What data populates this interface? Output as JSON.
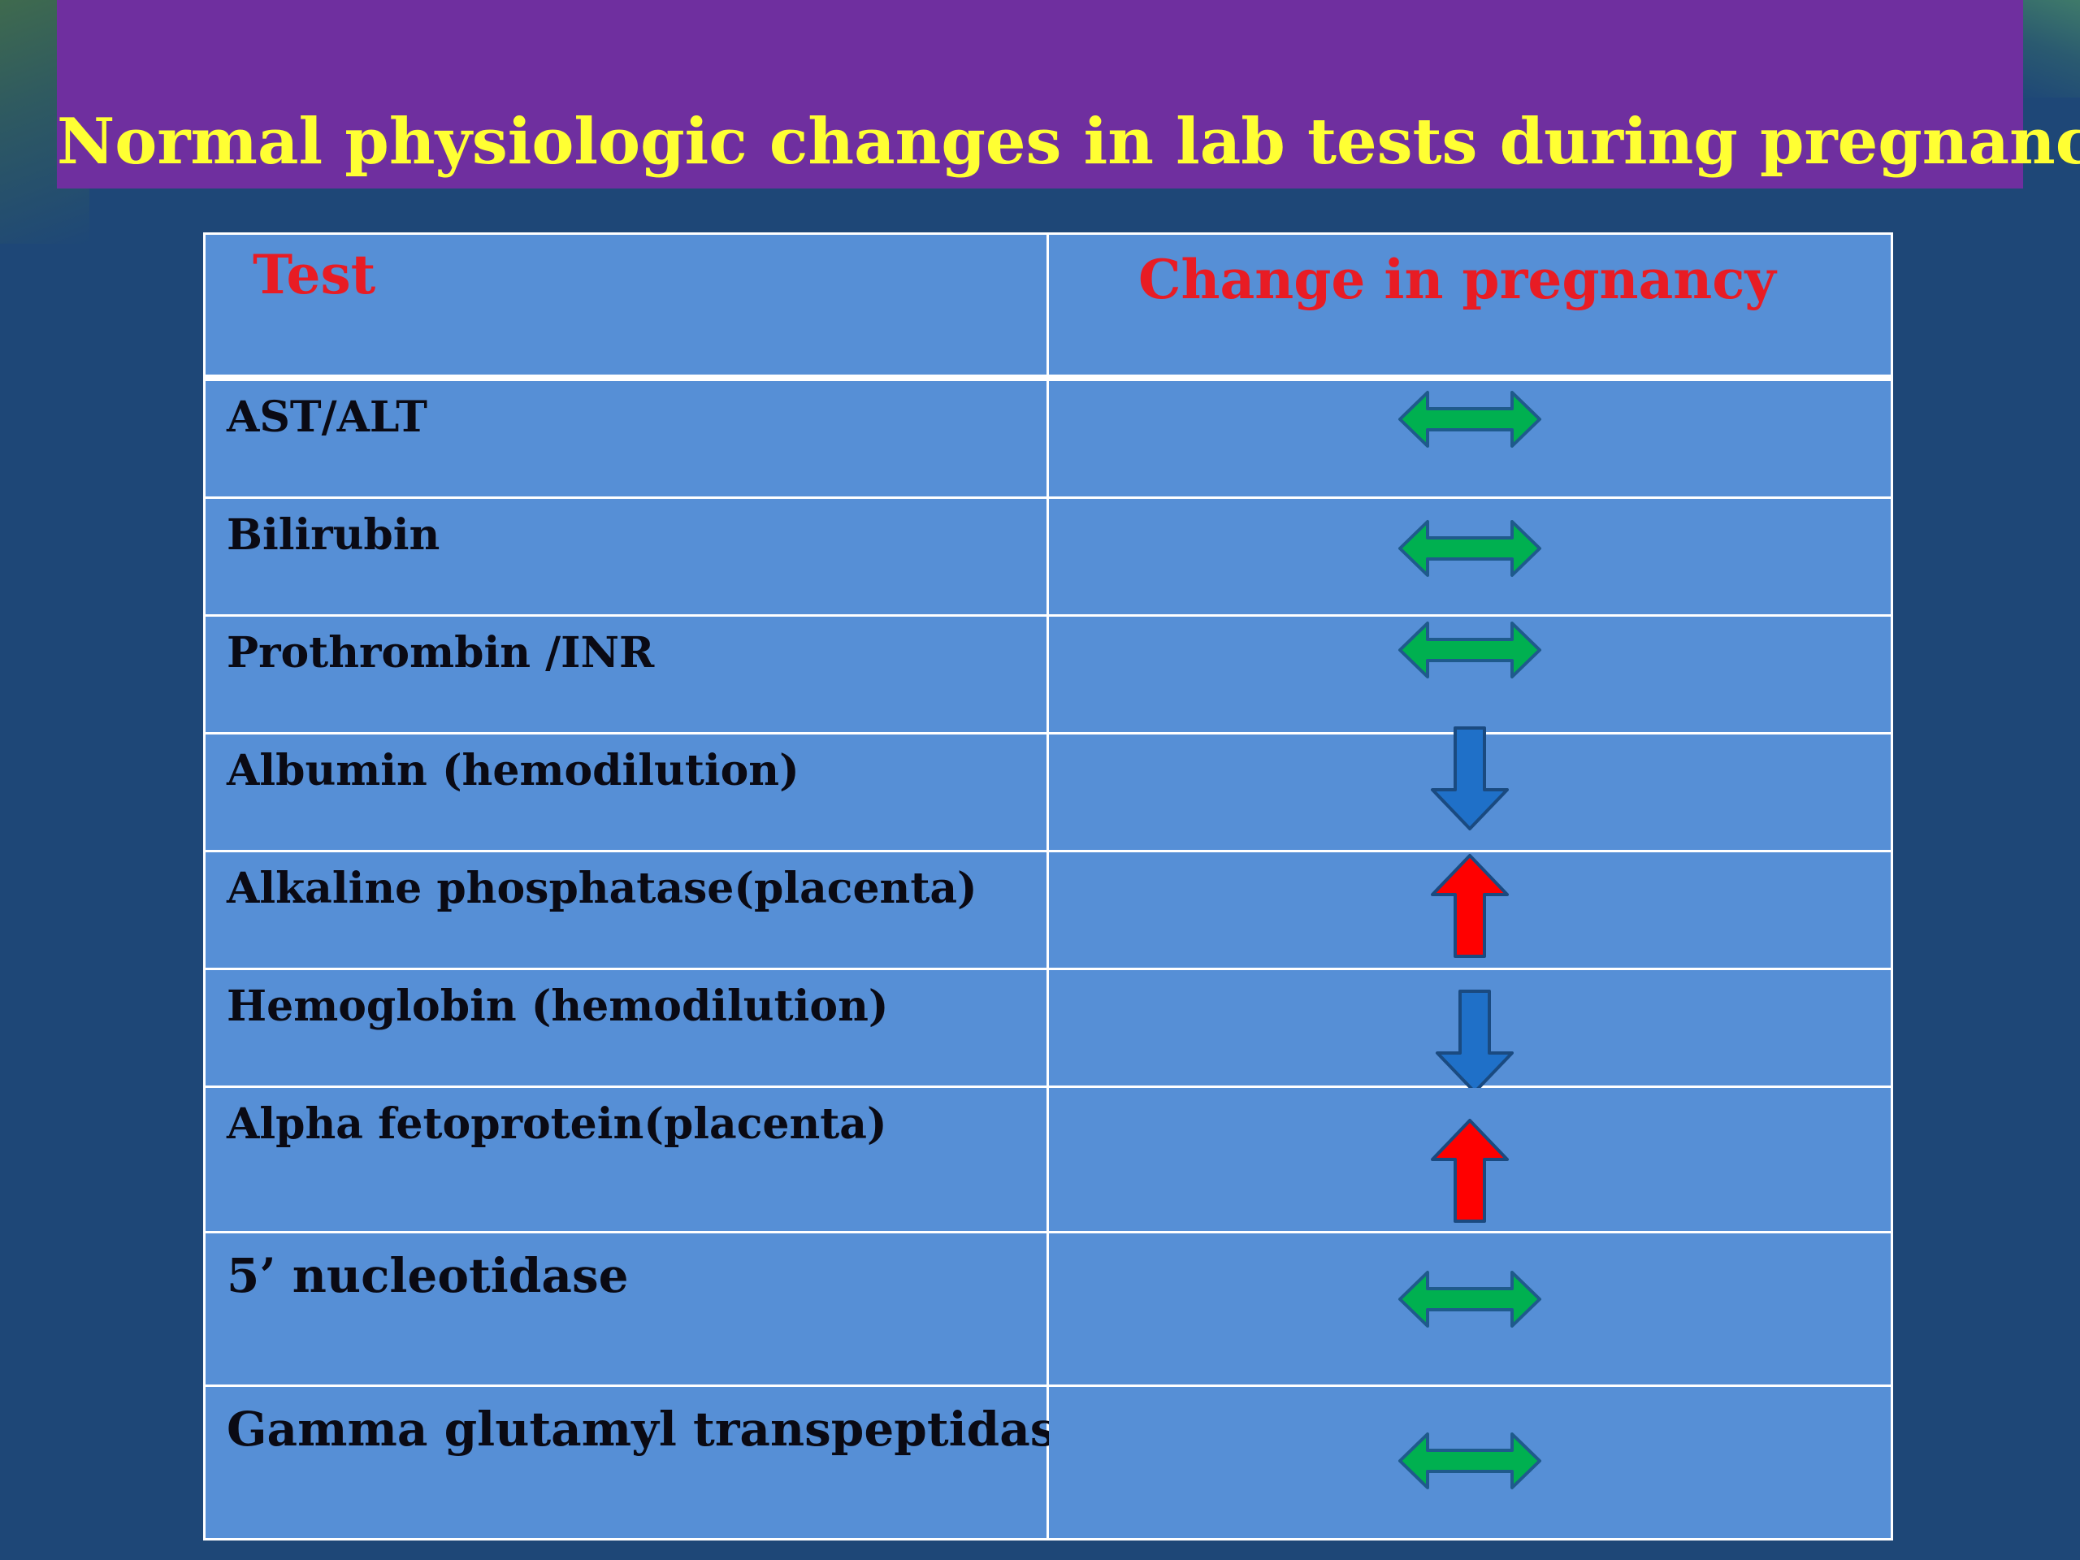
{
  "slide": {
    "title": "Normal physiologic changes in lab tests during  pregnancy"
  },
  "table": {
    "headers": {
      "test": "Test",
      "change": "Change in pregnancy"
    },
    "rows": [
      {
        "test": "AST/ALT",
        "change": "unchanged",
        "icon": "double-arrow-icon",
        "color": "#00b050"
      },
      {
        "test": "Bilirubin",
        "change": "unchanged",
        "icon": "double-arrow-icon",
        "color": "#00b050"
      },
      {
        "test": "Prothrombin /INR",
        "change": "unchanged",
        "icon": "double-arrow-icon",
        "color": "#00b050"
      },
      {
        "test": "Albumin (hemodilution)",
        "change": "decreased",
        "icon": "down-arrow-icon",
        "color": "#1f70c8"
      },
      {
        "test": "Alkaline phosphatase(placenta)",
        "change": "increased",
        "icon": "up-arrow-icon",
        "color": "#ff0000"
      },
      {
        "test": "Hemoglobin (hemodilution)",
        "change": "decreased",
        "icon": "down-arrow-icon",
        "color": "#1f70c8"
      },
      {
        "test": "Alpha fetoprotein(placenta)",
        "change": "increased",
        "icon": "up-arrow-icon",
        "color": "#ff0000"
      },
      {
        "test": "5’ nucleotidase",
        "change": "unchanged",
        "icon": "double-arrow-icon",
        "color": "#00b050"
      },
      {
        "test": "Gamma glutamyl transpeptidase",
        "change": "unchanged",
        "icon": "double-arrow-icon",
        "color": "#00b050"
      }
    ]
  },
  "colors": {
    "background": "#1e4777",
    "title_bar": "#6f2f9f",
    "title_text": "#ffff33",
    "table_fill": "#568fd6",
    "header_text": "#e81c24"
  }
}
